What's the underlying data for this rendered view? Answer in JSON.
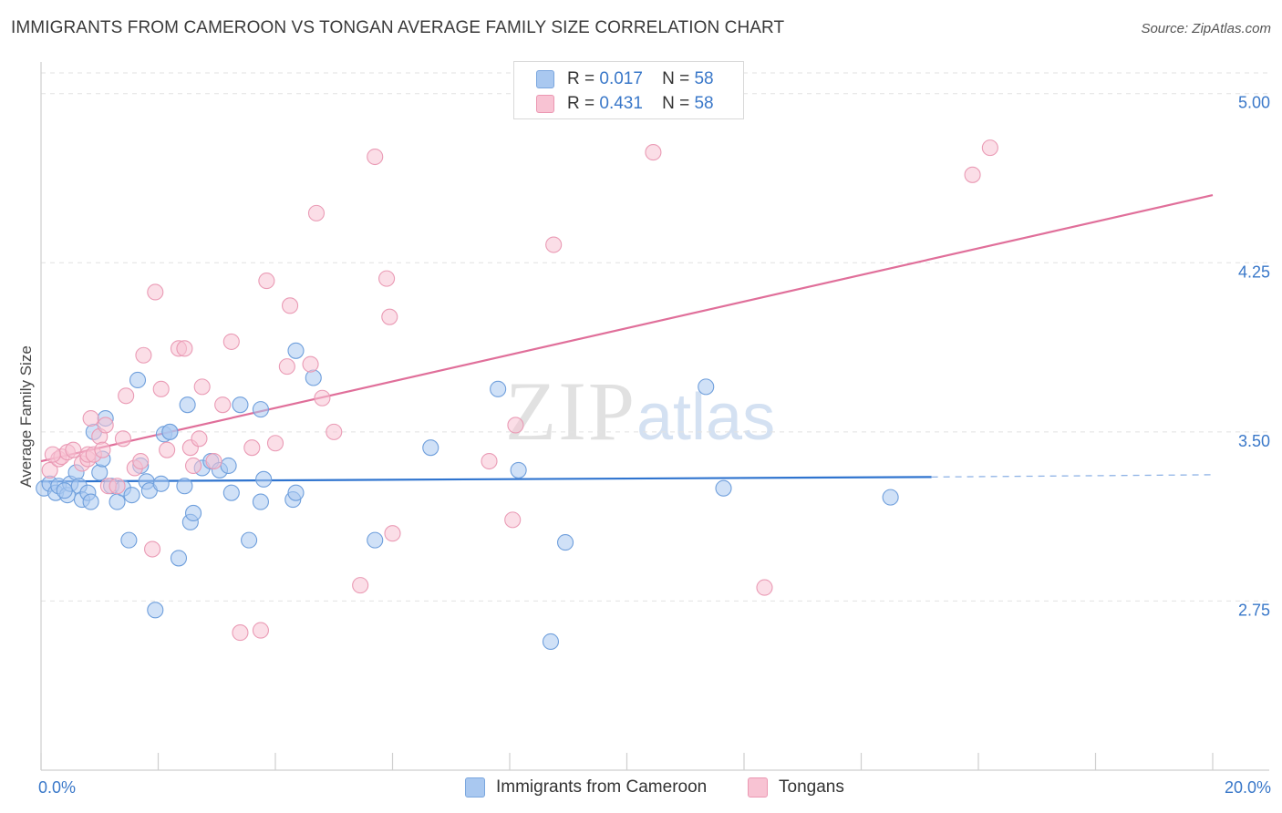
{
  "title": "IMMIGRANTS FROM CAMEROON VS TONGAN AVERAGE FAMILY SIZE CORRELATION CHART",
  "source": "Source: ZipAtlas.com",
  "watermark": {
    "zip": "ZIP",
    "atlas": "atlas"
  },
  "legend": {
    "rows": [
      {
        "r_label": "R = ",
        "r_value": "0.017",
        "n_label": "N = ",
        "n_value": "58",
        "color": "#a9c8f0",
        "border": "#7aa6de"
      },
      {
        "r_label": "R = ",
        "r_value": "0.431",
        "n_label": "N = ",
        "n_value": "58",
        "color": "#f8c3d3",
        "border": "#eb97b2"
      }
    ]
  },
  "bottom_legend": [
    {
      "label": "Immigrants from Cameroon",
      "color": "#a9c8f0",
      "border": "#7aa6de"
    },
    {
      "label": "Tongans",
      "color": "#f8c3d3",
      "border": "#eb97b2"
    }
  ],
  "chart_data": {
    "type": "scatter",
    "title": "IMMIGRANTS FROM CAMEROON VS TONGAN AVERAGE FAMILY SIZE CORRELATION CHART",
    "xlabel": "",
    "ylabel": "Average Family Size",
    "xlim": [
      0,
      20
    ],
    "ylim": [
      2.0,
      5.1
    ],
    "x_tick_labels": [
      {
        "value": 0,
        "label": "0.0%"
      },
      {
        "value": 20,
        "label": "20.0%"
      }
    ],
    "y_ticks": [
      {
        "value": 2.75,
        "label": "2.75"
      },
      {
        "value": 3.5,
        "label": "3.50"
      },
      {
        "value": 4.25,
        "label": "4.25"
      },
      {
        "value": 5.0,
        "label": "5.00"
      }
    ],
    "series": [
      {
        "name": "Immigrants from Cameroon",
        "color": "#a9c8f0",
        "stroke": "#6f9fdc",
        "line_color": "#2f74cf",
        "trend": {
          "x0": 0,
          "y0": 3.28,
          "x1": 15.2,
          "y1": 3.3,
          "dash_to_x": 20,
          "dash_y": 3.31
        },
        "points": [
          [
            0.05,
            3.25
          ],
          [
            0.15,
            3.27
          ],
          [
            0.25,
            3.23
          ],
          [
            0.3,
            3.26
          ],
          [
            0.45,
            3.22
          ],
          [
            0.5,
            3.27
          ],
          [
            0.6,
            3.32
          ],
          [
            0.65,
            3.26
          ],
          [
            0.7,
            3.2
          ],
          [
            0.8,
            3.23
          ],
          [
            0.85,
            3.19
          ],
          [
            0.9,
            3.5
          ],
          [
            1.0,
            3.32
          ],
          [
            1.05,
            3.38
          ],
          [
            1.1,
            3.56
          ],
          [
            1.2,
            3.26
          ],
          [
            1.3,
            3.19
          ],
          [
            1.4,
            3.25
          ],
          [
            1.5,
            3.02
          ],
          [
            1.55,
            3.22
          ],
          [
            1.65,
            3.73
          ],
          [
            1.7,
            3.35
          ],
          [
            1.8,
            3.28
          ],
          [
            1.85,
            3.24
          ],
          [
            1.95,
            2.71
          ],
          [
            2.05,
            3.27
          ],
          [
            2.1,
            3.49
          ],
          [
            2.2,
            3.5
          ],
          [
            2.35,
            2.94
          ],
          [
            2.45,
            3.26
          ],
          [
            2.5,
            3.62
          ],
          [
            2.55,
            3.1
          ],
          [
            2.6,
            3.14
          ],
          [
            2.75,
            3.34
          ],
          [
            2.9,
            3.37
          ],
          [
            3.05,
            3.33
          ],
          [
            3.2,
            3.35
          ],
          [
            3.25,
            3.23
          ],
          [
            3.4,
            3.62
          ],
          [
            3.55,
            3.02
          ],
          [
            3.75,
            3.19
          ],
          [
            3.75,
            3.6
          ],
          [
            3.8,
            3.29
          ],
          [
            4.3,
            3.2
          ],
          [
            4.35,
            3.23
          ],
          [
            4.35,
            3.86
          ],
          [
            4.65,
            3.74
          ],
          [
            5.7,
            3.02
          ],
          [
            6.65,
            3.43
          ],
          [
            7.8,
            3.69
          ],
          [
            8.15,
            3.33
          ],
          [
            8.7,
            2.57
          ],
          [
            8.95,
            3.01
          ],
          [
            11.35,
            3.7
          ],
          [
            11.65,
            3.25
          ],
          [
            14.5,
            3.21
          ],
          [
            2.2,
            3.5
          ],
          [
            0.4,
            3.24
          ]
        ]
      },
      {
        "name": "Tongans",
        "color": "#f8c3d3",
        "stroke": "#ea9bb5",
        "line_color": "#e06f9a",
        "trend": {
          "x0": 0,
          "y0": 3.37,
          "x1": 20,
          "y1": 4.55
        },
        "points": [
          [
            0.15,
            3.33
          ],
          [
            0.3,
            3.38
          ],
          [
            0.35,
            3.39
          ],
          [
            0.45,
            3.41
          ],
          [
            0.55,
            3.42
          ],
          [
            0.7,
            3.36
          ],
          [
            0.8,
            3.38
          ],
          [
            0.8,
            3.4
          ],
          [
            0.85,
            3.56
          ],
          [
            0.9,
            3.4
          ],
          [
            1.0,
            3.48
          ],
          [
            1.05,
            3.42
          ],
          [
            1.1,
            3.53
          ],
          [
            1.15,
            3.26
          ],
          [
            1.3,
            3.26
          ],
          [
            1.4,
            3.47
          ],
          [
            1.45,
            3.66
          ],
          [
            1.6,
            3.34
          ],
          [
            1.7,
            3.37
          ],
          [
            1.75,
            3.84
          ],
          [
            1.9,
            2.98
          ],
          [
            1.95,
            4.12
          ],
          [
            2.05,
            3.69
          ],
          [
            2.15,
            3.42
          ],
          [
            2.35,
            3.87
          ],
          [
            2.45,
            3.87
          ],
          [
            2.55,
            3.43
          ],
          [
            2.6,
            3.35
          ],
          [
            2.7,
            3.47
          ],
          [
            2.75,
            3.7
          ],
          [
            2.95,
            3.37
          ],
          [
            3.1,
            3.62
          ],
          [
            3.25,
            3.9
          ],
          [
            3.4,
            2.61
          ],
          [
            3.6,
            3.43
          ],
          [
            3.75,
            2.62
          ],
          [
            3.85,
            4.17
          ],
          [
            4.0,
            3.45
          ],
          [
            4.2,
            3.79
          ],
          [
            4.25,
            4.06
          ],
          [
            4.6,
            3.8
          ],
          [
            4.7,
            4.47
          ],
          [
            4.8,
            3.65
          ],
          [
            5.0,
            3.5
          ],
          [
            5.45,
            2.82
          ],
          [
            5.7,
            4.72
          ],
          [
            5.9,
            4.18
          ],
          [
            5.95,
            4.01
          ],
          [
            6.0,
            3.05
          ],
          [
            7.65,
            3.37
          ],
          [
            8.05,
            3.11
          ],
          [
            8.1,
            3.53
          ],
          [
            8.75,
            4.33
          ],
          [
            10.45,
            4.74
          ],
          [
            12.35,
            2.81
          ],
          [
            15.9,
            4.64
          ],
          [
            16.2,
            4.76
          ],
          [
            0.2,
            3.4
          ]
        ]
      }
    ]
  }
}
